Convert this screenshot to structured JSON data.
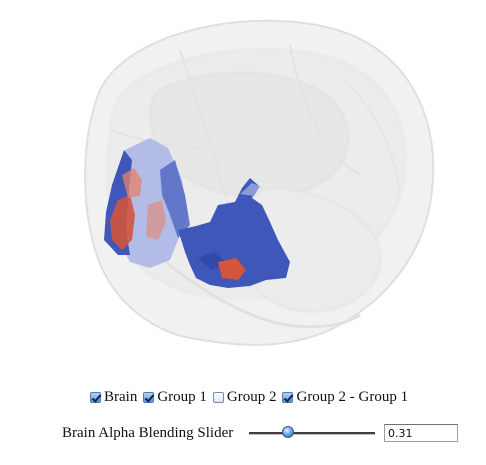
{
  "viewer": {
    "brain_alpha": 0.31,
    "colors": {
      "brain": "#e8e8e8",
      "group1_overlay": "#3f57b8",
      "group2_minus_group1": "#d2553c",
      "light_region": "#a9b3e6"
    }
  },
  "layers": [
    {
      "label": "Brain",
      "checked": true
    },
    {
      "label": "Group 1",
      "checked": true
    },
    {
      "label": "Group 2",
      "checked": false
    },
    {
      "label": "Group 2 - Group 1",
      "checked": true
    }
  ],
  "alpha_slider": {
    "label": "Brain Alpha Blending Slider",
    "value": "0.31",
    "level": 0.31
  }
}
